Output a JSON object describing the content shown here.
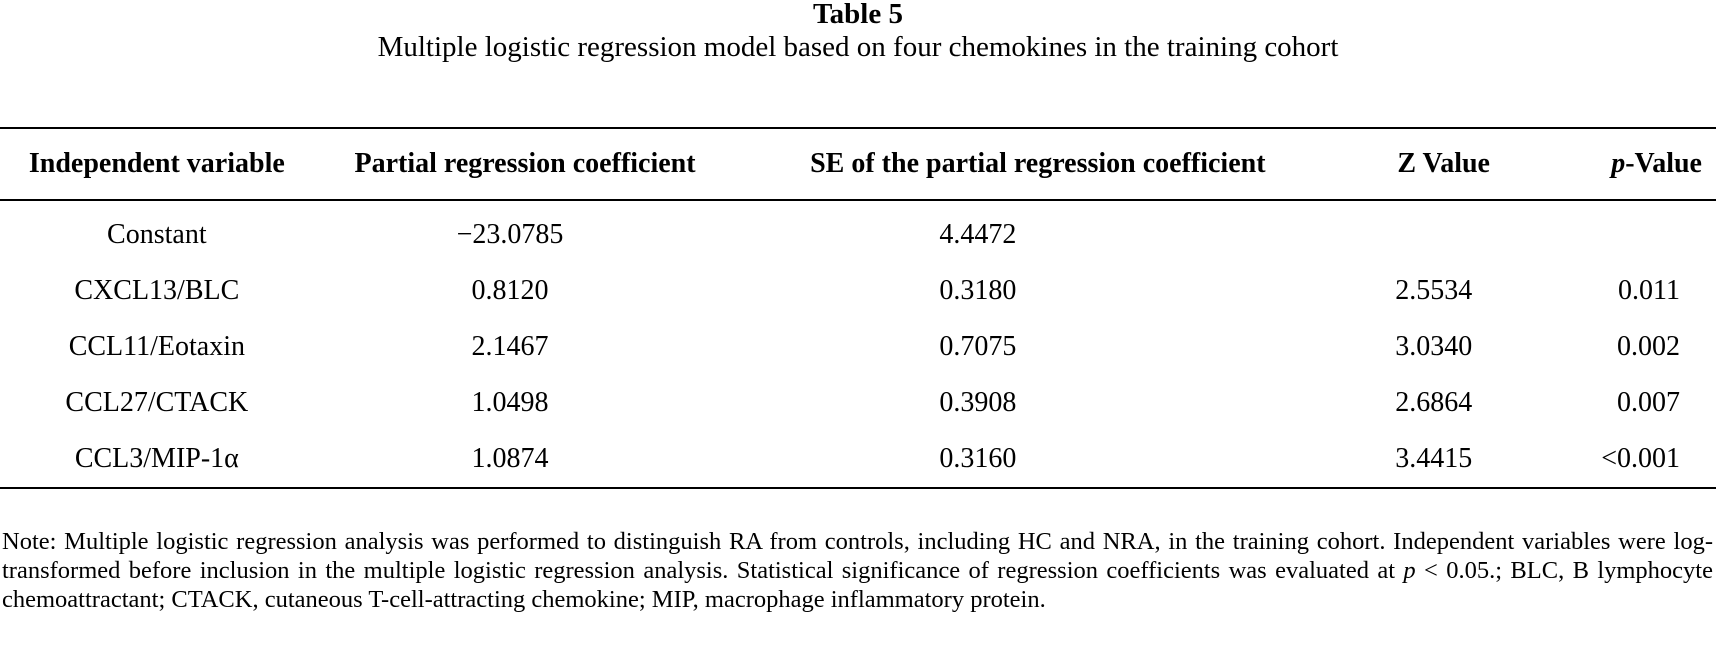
{
  "table": {
    "label": "Table 5",
    "caption": "Multiple logistic regression model based on four chemokines in the training cohort",
    "headers": {
      "independent_variable": "Independent variable",
      "partial_coef": "Partial regression coefficient",
      "se_coef": "SE of the partial regression coefficient",
      "z_value": "Z Value",
      "p_value_italic": "p",
      "p_value_rest": "-Value"
    },
    "rows": [
      {
        "variable": "Constant",
        "coef": "−23.0785",
        "se": "4.4472",
        "z": "",
        "p": ""
      },
      {
        "variable": "CXCL13/BLC",
        "coef": "0.8120",
        "se": "0.3180",
        "z": "2.5534",
        "p": "0.011"
      },
      {
        "variable": "CCL11/Eotaxin",
        "coef": "2.1467",
        "se": "0.7075",
        "z": "3.0340",
        "p": "0.002"
      },
      {
        "variable": "CCL27/CTACK",
        "coef": "1.0498",
        "se": "0.3908",
        "z": "2.6864",
        "p": "0.007"
      },
      {
        "variable": "CCL3/MIP-1α",
        "coef": "1.0874",
        "se": "0.3160",
        "z": "3.4415",
        "p": "<0.001"
      }
    ]
  },
  "note": {
    "part1": "Note: Multiple logistic regression analysis was performed to distinguish RA from controls, including HC and NRA, in the training cohort. Independent variables were log-transformed before inclusion in the multiple logistic regression analysis. Statistical significance of regression coefficients was evaluated at ",
    "p_italic": "p",
    "part2": " < 0.05.; BLC, B lymphocyte chemoattractant; CTACK, cutaneous T-cell-attracting chemokine; MIP, macrophage inflammatory protein."
  }
}
